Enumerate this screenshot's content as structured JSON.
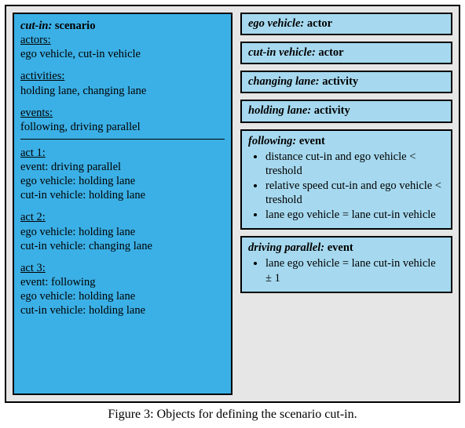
{
  "colors": {
    "outer_bg": "#e6e6e6",
    "main_box_bg": "#3bb0e6",
    "side_box_bg": "#a6d9ef",
    "border": "#000000",
    "text": "#000000"
  },
  "typography": {
    "font_family": "Times New Roman",
    "body_fontsize": 14.5,
    "caption_fontsize": 16
  },
  "layout": {
    "figure_width": 592,
    "figure_height": 546,
    "left_col_width": 280,
    "gap": 10,
    "box_border_width": 2
  },
  "main": {
    "header_key": "cut-in:",
    "header_type": "scenario",
    "actors_label": "actors:",
    "actors_value": "ego vehicle, cut-in vehicle",
    "activities_label": "activities:",
    "activities_value": "holding lane, changing lane",
    "events_label": "events:",
    "events_value": "following, driving parallel",
    "act1_label": "act 1:",
    "act1_line1": "event: driving parallel",
    "act1_line2": "ego vehicle: holding lane",
    "act1_line3": "cut-in vehicle: holding lane",
    "act2_label": "act 2:",
    "act2_line1": "ego vehicle: holding lane",
    "act2_line2": "cut-in vehicle: changing lane",
    "act3_label": "act 3:",
    "act3_line1": "event: following",
    "act3_line2": "ego vehicle: holding lane",
    "act3_line3": "cut-in vehicle: holding lane"
  },
  "side_boxes": [
    {
      "key": "ego vehicle:",
      "type": "actor"
    },
    {
      "key": "cut-in vehicle:",
      "type": "actor"
    },
    {
      "key": "changing lane:",
      "type": "activity"
    },
    {
      "key": "holding lane:",
      "type": "activity"
    }
  ],
  "following_box": {
    "key": "following:",
    "type": "event",
    "bullets": [
      "distance cut-in and ego vehicle < treshold",
      "relative speed cut-in and ego vehicle < treshold",
      "lane ego vehicle = lane cut-in vehicle"
    ]
  },
  "parallel_box": {
    "key": "driving parallel:",
    "type": "event",
    "bullets": [
      "lane ego vehicle = lane cut-in vehicle ± 1"
    ]
  },
  "caption": "Figure 3: Objects for defining the scenario cut-in."
}
